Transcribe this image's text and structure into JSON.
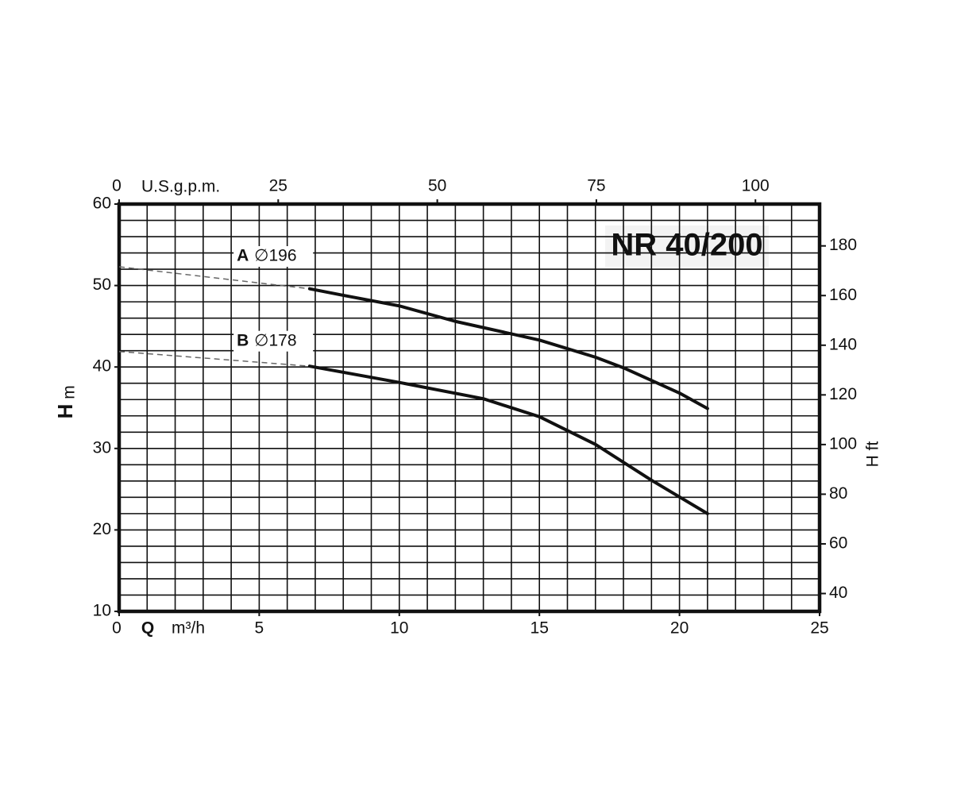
{
  "chart_data": {
    "type": "line",
    "title": "NR 40/200",
    "x_label_symbol": "Q",
    "x_label_unit": "m³/h",
    "y_label_symbol": "H",
    "y_label_unit": "m",
    "y2_label": "H ft",
    "x2_label": "U.S.g.p.m.",
    "xlim": [
      0,
      25
    ],
    "xticks": [
      0,
      5,
      10,
      15,
      20,
      25
    ],
    "ylim": [
      10,
      60
    ],
    "yticks": [
      10,
      20,
      30,
      40,
      50,
      60
    ],
    "x2lim": [
      0,
      110.08
    ],
    "x2ticks": [
      0,
      25,
      50,
      75,
      100
    ],
    "y2lim": [
      32.81,
      196.85
    ],
    "y2ticks": [
      40,
      60,
      80,
      100,
      120,
      140,
      160,
      180
    ],
    "xgrid": [
      0,
      1,
      2,
      3,
      4,
      5,
      6,
      7,
      8,
      9,
      10,
      11,
      12,
      13,
      14,
      15,
      16,
      17,
      18,
      19,
      20,
      21,
      22,
      23,
      24,
      25
    ],
    "ygrid": [
      10,
      12,
      14,
      16,
      18,
      20,
      22,
      24,
      26,
      28,
      30,
      32,
      34,
      36,
      38,
      40,
      42,
      44,
      46,
      48,
      50,
      52,
      54,
      56,
      58,
      60
    ],
    "color": "#111111",
    "series": [
      {
        "name": "A",
        "diameter": "∅196",
        "x": [
          6.8,
          8,
          10,
          12,
          15,
          17,
          18,
          20,
          21
        ],
        "values": [
          49.6,
          48.8,
          47.5,
          45.6,
          43.3,
          41.2,
          39.9,
          36.8,
          34.9
        ],
        "extrapolated": {
          "x": [
            0,
            6.8
          ],
          "values": [
            52.3,
            49.6
          ]
        }
      },
      {
        "name": "B",
        "diameter": "∅178",
        "x": [
          6.8,
          10,
          13,
          15,
          17,
          19,
          21
        ],
        "values": [
          40.1,
          38.1,
          36.1,
          33.9,
          30.5,
          26.1,
          22.0
        ],
        "extrapolated": {
          "x": [
            0,
            6.8
          ],
          "values": [
            41.9,
            40.1
          ]
        }
      }
    ]
  }
}
